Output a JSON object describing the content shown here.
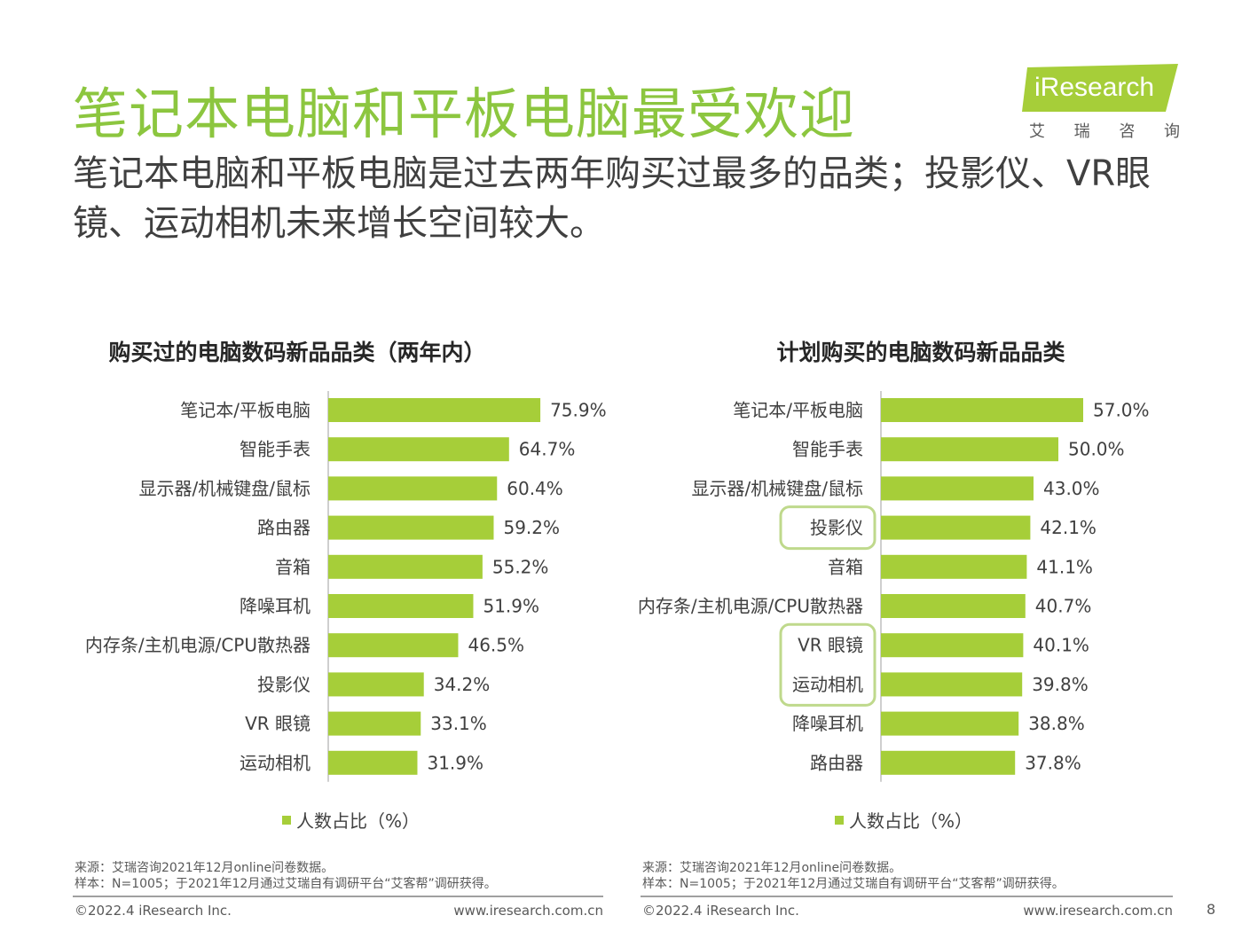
{
  "header": {
    "title": "笔记本电脑和平板电脑最受欢迎",
    "subtitle": "笔记本电脑和平板电脑是过去两年购买过最多的品类；投影仪、VR眼镜、运动相机未来增长空间较大。"
  },
  "logo": {
    "name": "iResearch",
    "chinese_chars": [
      "艾",
      "瑞",
      "咨",
      "询"
    ]
  },
  "colors": {
    "bar": "#A6CE39",
    "title": "#8CC63F",
    "highlight": "#BFD98C"
  },
  "chart_data": [
    {
      "type": "bar",
      "orientation": "horizontal",
      "title": "购买过的电脑数码新品品类（两年内）",
      "categories": [
        "笔记本/平板电脑",
        "智能手表",
        "显示器/机械键盘/鼠标",
        "路由器",
        "音箱",
        "降噪耳机",
        "内存条/主机电源/CPU散热器",
        "投影仪",
        "VR 眼镜",
        "运动相机"
      ],
      "values": [
        75.9,
        64.7,
        60.4,
        59.2,
        55.2,
        51.9,
        46.5,
        34.2,
        33.1,
        31.9
      ],
      "labels": [
        "75.9%",
        "64.7%",
        "60.4%",
        "59.2%",
        "55.2%",
        "51.9%",
        "46.5%",
        "34.2%",
        "33.1%",
        "31.9%"
      ],
      "xlim": [
        0,
        100
      ],
      "legend": "人数占比（%）",
      "highlighted": []
    },
    {
      "type": "bar",
      "orientation": "horizontal",
      "title": "计划购买的电脑数码新品品类",
      "categories": [
        "笔记本/平板电脑",
        "智能手表",
        "显示器/机械键盘/鼠标",
        "投影仪",
        "音箱",
        "内存条/主机电源/CPU散热器",
        "VR 眼镜",
        "运动相机",
        "降噪耳机",
        "路由器"
      ],
      "values": [
        57.0,
        50.0,
        43.0,
        42.1,
        41.1,
        40.7,
        40.1,
        39.8,
        38.8,
        37.8
      ],
      "labels": [
        "57.0%",
        "50.0%",
        "43.0%",
        "42.1%",
        "41.1%",
        "40.7%",
        "40.1%",
        "39.8%",
        "38.8%",
        "37.8%"
      ],
      "xlim": [
        0,
        75
      ],
      "legend": "人数占比（%）",
      "highlighted": [
        [
          3
        ],
        [
          6,
          7
        ]
      ]
    }
  ],
  "footer": {
    "source": "来源：艾瑞咨询2021年12月online问卷数据。",
    "sample": "样本：N=1005；于2021年12月通过艾瑞自有调研平台“艾客帮”调研获得。",
    "copyright": "©2022.4 iResearch Inc.",
    "website": "www.iresearch.com.cn",
    "page": "8"
  }
}
